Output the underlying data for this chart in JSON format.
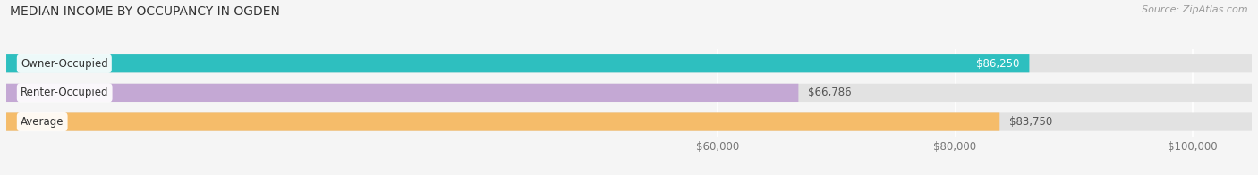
{
  "title": "MEDIAN INCOME BY OCCUPANCY IN OGDEN",
  "source": "Source: ZipAtlas.com",
  "categories": [
    "Owner-Occupied",
    "Renter-Occupied",
    "Average"
  ],
  "values": [
    86250,
    66786,
    83750
  ],
  "bar_colors": [
    "#2ebfbf",
    "#c4a8d4",
    "#f5bc6a"
  ],
  "bar_background": "#e8e8e8",
  "value_labels": [
    "$86,250",
    "$66,786",
    "$83,750"
  ],
  "value_inside": [
    true,
    false,
    false
  ],
  "xlim": [
    0,
    105000
  ],
  "xticks": [
    60000,
    80000,
    100000
  ],
  "xtick_labels": [
    "$60,000",
    "$80,000",
    "$100,000"
  ],
  "title_fontsize": 10,
  "label_fontsize": 8.5,
  "tick_fontsize": 8.5,
  "source_fontsize": 8,
  "bar_height": 0.62,
  "fig_width": 14.06,
  "fig_height": 1.96,
  "background_color": "#f5f5f5",
  "bar_spacing": 1.0
}
